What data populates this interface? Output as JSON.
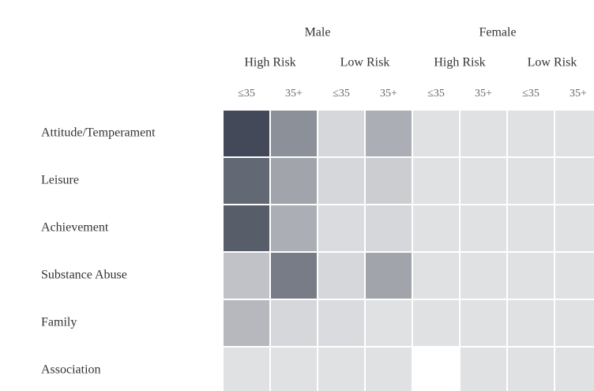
{
  "chart_data": {
    "type": "heatmap",
    "column_groups": [
      "Male",
      "Female"
    ],
    "column_subgroups": [
      "High Risk",
      "Low Risk",
      "High Risk",
      "Low Risk"
    ],
    "columns": [
      "≤35",
      "35+",
      "≤35",
      "35+",
      "≤35",
      "35+",
      "≤35",
      "35+"
    ],
    "rows": [
      "Attitude/Temperament",
      "Leisure",
      "Achievement",
      "Substance Abuse",
      "Family",
      "Association"
    ],
    "values": [
      [
        90,
        55,
        20,
        40,
        15,
        15,
        15,
        15
      ],
      [
        75,
        45,
        20,
        25,
        15,
        15,
        15,
        15
      ],
      [
        80,
        40,
        18,
        20,
        15,
        15,
        15,
        15
      ],
      [
        30,
        65,
        20,
        45,
        15,
        15,
        15,
        15
      ],
      [
        35,
        20,
        18,
        15,
        15,
        15,
        15,
        15
      ],
      [
        15,
        15,
        15,
        15,
        0,
        15,
        15,
        15
      ]
    ],
    "zlim": [
      0,
      100
    ],
    "colors": [
      "#ffffff",
      "#2e3545"
    ]
  }
}
